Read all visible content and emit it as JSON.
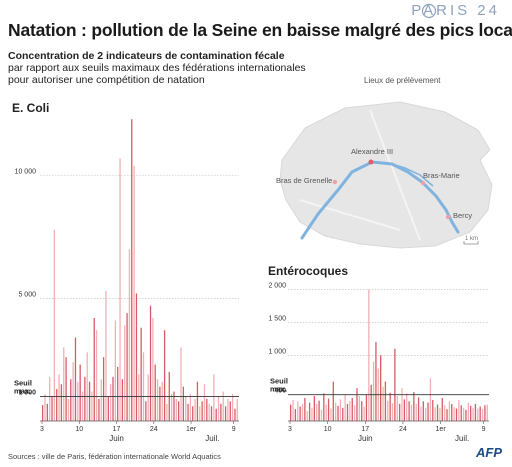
{
  "header": {
    "title": "Natation : pollution de la Seine en baisse malgré des pics locaux",
    "logo": "PARIS 24",
    "subtitle_line1": "Concentration de 2 indicateurs de contamination fécale",
    "subtitle_line2": "par rapport aux seuils maximaux des fédérations internationales",
    "subtitle_line3": "pour autoriser une compétition de natation"
  },
  "map": {
    "title": "Lieux de prélèvement",
    "sites": [
      "Alexandre III",
      "Bras de Grenelle",
      "Bras-Marie",
      "Bercy"
    ],
    "scale_label": "1 km",
    "colors": {
      "river": "#7fb3e0",
      "land": "#e6e6e6",
      "site": "#e85a6a"
    }
  },
  "footer": {
    "sources": "Sources : ville de Paris, fédération internationale World Aquatics",
    "brand": "AFP"
  },
  "chart_data": [
    {
      "type": "bar",
      "title": "E. Coli",
      "threshold": 1000,
      "threshold_label_1": "Seuil",
      "threshold_label_2": "max.",
      "yticks": [
        {
          "value": 1000,
          "label": "1 000"
        },
        {
          "value": 5000,
          "label": "5 000"
        },
        {
          "value": 10000,
          "label": "10 000"
        }
      ],
      "ylim": [
        0,
        13000
      ],
      "xticks": [
        "3",
        "10",
        "17",
        "24",
        "1er",
        "9"
      ],
      "month_labels": [
        "Juin",
        "Juil."
      ],
      "series": [
        {
          "colors": {
            "dark": "#d85a66",
            "light": "#f0b0b4"
          },
          "values": [
            650,
            1100,
            700,
            1800,
            1000,
            7800,
            1300,
            1900,
            1500,
            3000,
            2600,
            900,
            1700,
            2400,
            3400,
            1600,
            2300,
            1200,
            1800,
            2800,
            1600,
            1200,
            4200,
            3700,
            900,
            1700,
            2600,
            5300,
            1000,
            1500,
            1800,
            4100,
            2200,
            10700,
            1700,
            3900,
            4400,
            7000,
            12300,
            10400,
            5200,
            1900,
            3800,
            2800,
            800,
            1900,
            4700,
            4200,
            2300,
            1700,
            1400,
            1600,
            3700,
            700,
            2000,
            1100,
            1200,
            900,
            800,
            3000,
            1400,
            1000,
            700,
            1100,
            600,
            900,
            1600,
            600,
            800,
            1500,
            900,
            700,
            600,
            1900,
            500,
            1000,
            700,
            1200,
            600,
            900,
            800,
            1100,
            500,
            900
          ]
        }
      ]
    },
    {
      "type": "bar",
      "title": "Entérocoques",
      "threshold": 400,
      "threshold_label_1": "Seuil",
      "threshold_label_2": "max.",
      "yticks": [
        {
          "value": 400,
          "label": "400"
        },
        {
          "value": 1000,
          "label": "1 000"
        },
        {
          "value": 1500,
          "label": "1 500"
        },
        {
          "value": 2000,
          "label": "2 000"
        }
      ],
      "ylim": [
        0,
        2100
      ],
      "xticks": [
        "3",
        "10",
        "17",
        "24",
        "1er",
        "9"
      ],
      "month_labels": [
        "Juin",
        "Juil."
      ],
      "series": [
        {
          "colors": {
            "dark": "#d85a66",
            "light": "#f0b0b4"
          },
          "values": [
            250,
            320,
            180,
            300,
            220,
            260,
            350,
            150,
            280,
            200,
            380,
            260,
            310,
            170,
            420,
            250,
            340,
            190,
            600,
            280,
            230,
            330,
            200,
            400,
            260,
            300,
            350,
            240,
            500,
            380,
            300,
            220,
            400,
            2000,
            550,
            900,
            1200,
            800,
            1000,
            520,
            600,
            310,
            430,
            270,
            1100,
            380,
            260,
            500,
            330,
            420,
            300,
            250,
            440,
            260,
            360,
            220,
            300,
            200,
            280,
            650,
            320,
            210,
            250,
            200,
            350,
            240,
            180,
            300,
            260,
            210,
            190,
            320,
            240,
            200,
            170,
            280,
            230,
            200,
            260,
            190,
            220,
            180,
            240,
            250
          ]
        }
      ]
    }
  ]
}
